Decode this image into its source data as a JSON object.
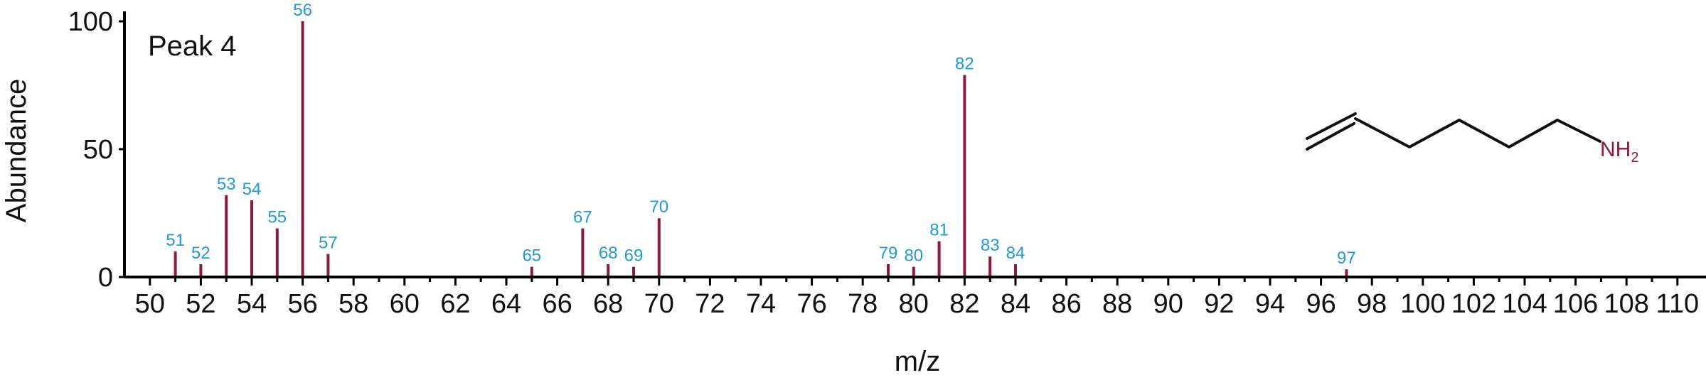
{
  "chart_data": {
    "type": "bar",
    "title": "Peak 4",
    "xlabel": "m/z",
    "ylabel": "Abundance",
    "xlim": [
      49,
      111
    ],
    "ylim": [
      0,
      100
    ],
    "x_ticks": [
      "50",
      "52",
      "54",
      "56",
      "58",
      "60",
      "62",
      "64",
      "66",
      "68",
      "70",
      "72",
      "74",
      "76",
      "78",
      "80",
      "82",
      "84",
      "86",
      "88",
      "90",
      "92",
      "94",
      "96",
      "98",
      "100",
      "102",
      "104",
      "106",
      "108",
      "110"
    ],
    "y_ticks": [
      "0",
      "50",
      "100"
    ],
    "points": [
      {
        "x": 51,
        "y": 10,
        "label": "51"
      },
      {
        "x": 52,
        "y": 5,
        "label": "52"
      },
      {
        "x": 53,
        "y": 32,
        "label": "53"
      },
      {
        "x": 54,
        "y": 30,
        "label": "54"
      },
      {
        "x": 55,
        "y": 19,
        "label": "55"
      },
      {
        "x": 56,
        "y": 100,
        "label": "56"
      },
      {
        "x": 57,
        "y": 9,
        "label": "57"
      },
      {
        "x": 65,
        "y": 4,
        "label": "65"
      },
      {
        "x": 67,
        "y": 19,
        "label": "67"
      },
      {
        "x": 68,
        "y": 5,
        "label": "68"
      },
      {
        "x": 69,
        "y": 4,
        "label": "69"
      },
      {
        "x": 70,
        "y": 23,
        "label": "70"
      },
      {
        "x": 79,
        "y": 5,
        "label": "79"
      },
      {
        "x": 80,
        "y": 4,
        "label": "80"
      },
      {
        "x": 81,
        "y": 14,
        "label": "81"
      },
      {
        "x": 82,
        "y": 79,
        "label": "82"
      },
      {
        "x": 83,
        "y": 8,
        "label": "83"
      },
      {
        "x": 84,
        "y": 5,
        "label": "84"
      },
      {
        "x": 97,
        "y": 3,
        "label": "97"
      }
    ],
    "colors": {
      "bar": "#8b1a3c",
      "data_label": "#1e9bd7",
      "axis": "#000000",
      "nh2": "#8b1a3c"
    },
    "grid": false
  },
  "structure": {
    "nh_label": "NH",
    "nh_subscript": "2"
  }
}
